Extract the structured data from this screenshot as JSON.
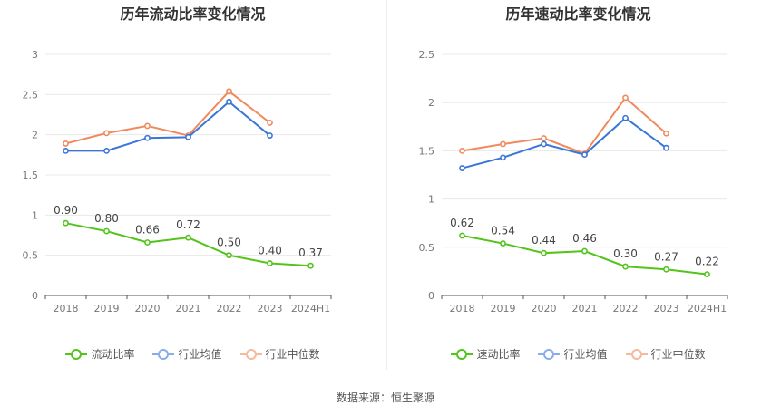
{
  "source_text": "数据来源：恒生聚源",
  "chart_data": [
    {
      "type": "line",
      "title": "历年流动比率变化情况",
      "categories": [
        "2018",
        "2019",
        "2020",
        "2021",
        "2022",
        "2023",
        "2024H1"
      ],
      "ylim": [
        0,
        3
      ],
      "yticks": [
        "0",
        "0.5",
        "1",
        "1.5",
        "2",
        "2.5",
        "3"
      ],
      "grid": true,
      "legend_position": "bottom",
      "series": [
        {
          "name": "流动比率",
          "color": "#52c41a",
          "values": [
            0.9,
            0.8,
            0.66,
            0.72,
            0.5,
            0.4,
            0.37
          ],
          "labels": [
            "0.90",
            "0.80",
            "0.66",
            "0.72",
            "0.50",
            "0.40",
            "0.37"
          ]
        },
        {
          "name": "行业均值",
          "color": "#3a76d8",
          "values": [
            1.8,
            1.8,
            1.96,
            1.97,
            2.41,
            1.99,
            null
          ]
        },
        {
          "name": "行业中位数",
          "color": "#f08a5d",
          "values": [
            1.89,
            2.02,
            2.11,
            1.99,
            2.54,
            2.15,
            null
          ]
        }
      ]
    },
    {
      "type": "line",
      "title": "历年速动比率变化情况",
      "categories": [
        "2018",
        "2019",
        "2020",
        "2021",
        "2022",
        "2023",
        "2024H1"
      ],
      "ylim": [
        0,
        2.5
      ],
      "yticks": [
        "0",
        "0.5",
        "1",
        "1.5",
        "2",
        "2.5"
      ],
      "grid": true,
      "legend_position": "bottom",
      "series": [
        {
          "name": "速动比率",
          "color": "#52c41a",
          "values": [
            0.62,
            0.54,
            0.44,
            0.46,
            0.3,
            0.27,
            0.22
          ],
          "labels": [
            "0.62",
            "0.54",
            "0.44",
            "0.46",
            "0.30",
            "0.27",
            "0.22"
          ]
        },
        {
          "name": "行业均值",
          "color": "#3a76d8",
          "values": [
            1.32,
            1.43,
            1.57,
            1.46,
            1.84,
            1.53,
            null
          ]
        },
        {
          "name": "行业中位数",
          "color": "#f08a5d",
          "values": [
            1.5,
            1.57,
            1.63,
            1.47,
            2.05,
            1.68,
            null
          ]
        }
      ]
    }
  ]
}
